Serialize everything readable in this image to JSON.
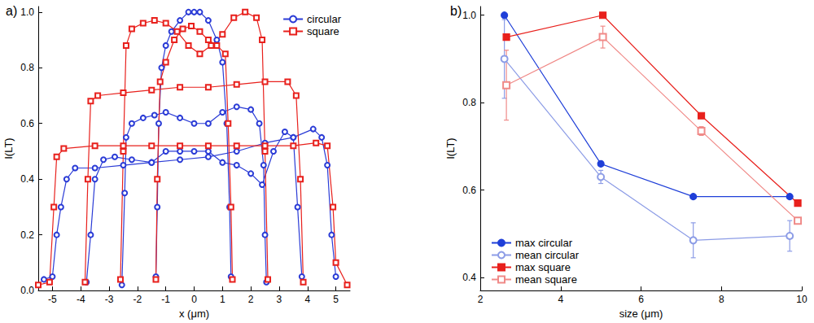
{
  "chart_data": [
    {
      "title": "a)",
      "type": "line",
      "xlabel": "x (μm)",
      "ylabel": "I(LT)",
      "xlim": [
        -5.5,
        5.5
      ],
      "xticks": [
        -5,
        -4,
        -3,
        -2,
        -1,
        0,
        1,
        2,
        3,
        4,
        5
      ],
      "ylim": [
        0,
        1.02
      ],
      "yticks": [
        {
          "value": 0,
          "label": "0.0"
        },
        0.2,
        0.4,
        0.6,
        0.8,
        {
          "value": 1,
          "label": "1.0"
        }
      ],
      "legend": "upper right",
      "series": [
        {
          "name": "circular",
          "color": "#2a3bd6",
          "marker": "open circle",
          "x": [
            -1.35,
            -1.3,
            -1.25,
            -1.15,
            -1.0,
            -0.8,
            -0.5,
            -0.2,
            0,
            0.2,
            0.5,
            0.8,
            1.0,
            1.15,
            1.25,
            1.3,
            null,
            -2.55,
            -2.45,
            -2.4,
            -2.2,
            -1.8,
            -1.4,
            -1.0,
            -0.5,
            0,
            0.5,
            1.0,
            1.5,
            2.0,
            2.3,
            2.45,
            2.5,
            2.55,
            null,
            -3.8,
            -3.65,
            -3.5,
            -3.2,
            -2.8,
            -2.2,
            -1.5,
            -1.0,
            -0.5,
            0,
            0.5,
            1.0,
            1.5,
            2.0,
            2.4,
            2.8,
            3.2,
            3.5,
            3.65,
            3.8,
            null,
            -5.3,
            -5.0,
            -4.85,
            -4.7,
            -4.5,
            -4.2,
            -3.5,
            -2.5,
            -1.5,
            -0.5,
            0.5,
            1.5,
            2.5,
            3.5,
            4.2,
            4.5,
            4.7,
            4.85,
            5.0
          ],
          "values": [
            0.05,
            0.3,
            0.6,
            0.8,
            0.88,
            0.93,
            0.97,
            1.0,
            1.0,
            1.0,
            0.97,
            0.9,
            0.82,
            0.6,
            0.3,
            0.05,
            null,
            0.02,
            0.35,
            0.55,
            0.6,
            0.62,
            0.63,
            0.64,
            0.62,
            0.6,
            0.6,
            0.64,
            0.66,
            0.65,
            0.6,
            0.45,
            0.2,
            0.03,
            null,
            0.03,
            0.2,
            0.4,
            0.47,
            0.48,
            0.47,
            0.46,
            0.5,
            0.5,
            0.5,
            0.5,
            0.46,
            0.45,
            0.42,
            0.38,
            0.5,
            0.57,
            0.55,
            0.3,
            0.05,
            null,
            0.04,
            0.05,
            0.2,
            0.3,
            0.4,
            0.44,
            0.44,
            0.45,
            0.46,
            0.47,
            0.48,
            0.5,
            0.53,
            0.55,
            0.58,
            0.55,
            0.45,
            0.2,
            0.05
          ]
        },
        {
          "name": "square",
          "color": "#e8201c",
          "marker": "open square",
          "x": [
            -1.35,
            -1.3,
            -1.2,
            -1.0,
            -0.7,
            -0.4,
            -0.1,
            0.2,
            0.5,
            0.8,
            1.1,
            1.2,
            1.3,
            1.35,
            null,
            -2.6,
            -2.5,
            -2.4,
            -2.2,
            -1.8,
            -1.4,
            -1.0,
            -0.6,
            -0.2,
            0.2,
            0.6,
            1.0,
            1.4,
            1.8,
            2.2,
            2.4,
            2.5,
            2.6,
            null,
            -3.85,
            -3.75,
            -3.65,
            -3.4,
            -2.5,
            -1.5,
            -0.5,
            0.5,
            1.5,
            2.5,
            3.3,
            3.6,
            3.75,
            3.85,
            null,
            -5.5,
            -5.1,
            -4.95,
            -4.85,
            -4.6,
            -3.5,
            -2.5,
            -1.5,
            -0.5,
            0.5,
            1.5,
            2.5,
            3.5,
            4.3,
            4.7,
            4.9,
            5.0,
            5.4
          ],
          "values": [
            0.04,
            0.4,
            0.75,
            0.82,
            0.9,
            0.94,
            0.95,
            0.93,
            0.9,
            0.88,
            0.85,
            0.6,
            0.3,
            0.04,
            null,
            0.04,
            0.5,
            0.88,
            0.94,
            0.96,
            0.97,
            0.96,
            0.93,
            0.88,
            0.85,
            0.88,
            0.92,
            0.98,
            1.0,
            0.98,
            0.9,
            0.5,
            0.04,
            null,
            0.03,
            0.4,
            0.68,
            0.7,
            0.71,
            0.72,
            0.73,
            0.73,
            0.74,
            0.75,
            0.75,
            0.7,
            0.4,
            0.03,
            null,
            0.02,
            0.03,
            0.3,
            0.48,
            0.51,
            0.52,
            0.52,
            0.52,
            0.52,
            0.52,
            0.52,
            0.52,
            0.52,
            0.53,
            0.52,
            0.3,
            0.1,
            0.02
          ]
        }
      ]
    },
    {
      "title": "b)",
      "type": "line",
      "xlabel": "size (μm)",
      "ylabel": "I(LT)",
      "xlim": [
        2,
        10
      ],
      "xticks": [
        2,
        4,
        6,
        8,
        10
      ],
      "ylim": [
        0.37,
        1.02
      ],
      "yticks": [
        0.4,
        0.6,
        0.8,
        {
          "value": 1,
          "label": "1.0"
        }
      ],
      "legend": "lower left",
      "series": [
        {
          "name": "max circular",
          "color": "#1f3fd8",
          "marker": "circle",
          "x": [
            2.6,
            5.0,
            7.3,
            9.7
          ],
          "values": [
            1.0,
            0.66,
            0.585,
            0.585
          ]
        },
        {
          "name": "mean circular",
          "color": "#8c9ce6",
          "marker": "open circle",
          "x": [
            2.6,
            5.0,
            7.3,
            9.7
          ],
          "values": [
            0.9,
            0.63,
            0.485,
            0.495
          ],
          "errors": [
            0.09,
            0.015,
            0.04,
            0.035
          ]
        },
        {
          "name": "max square",
          "color": "#e8201c",
          "marker": "square",
          "x": [
            2.65,
            5.05,
            7.5,
            9.9
          ],
          "values": [
            0.95,
            1.0,
            0.77,
            0.57
          ]
        },
        {
          "name": "mean square",
          "color": "#f08a88",
          "marker": "open square",
          "x": [
            2.65,
            5.05,
            7.5,
            9.9
          ],
          "values": [
            0.84,
            0.95,
            0.735,
            0.53
          ],
          "errors": [
            0.08,
            0.025,
            0.01,
            0.005
          ]
        }
      ]
    }
  ]
}
